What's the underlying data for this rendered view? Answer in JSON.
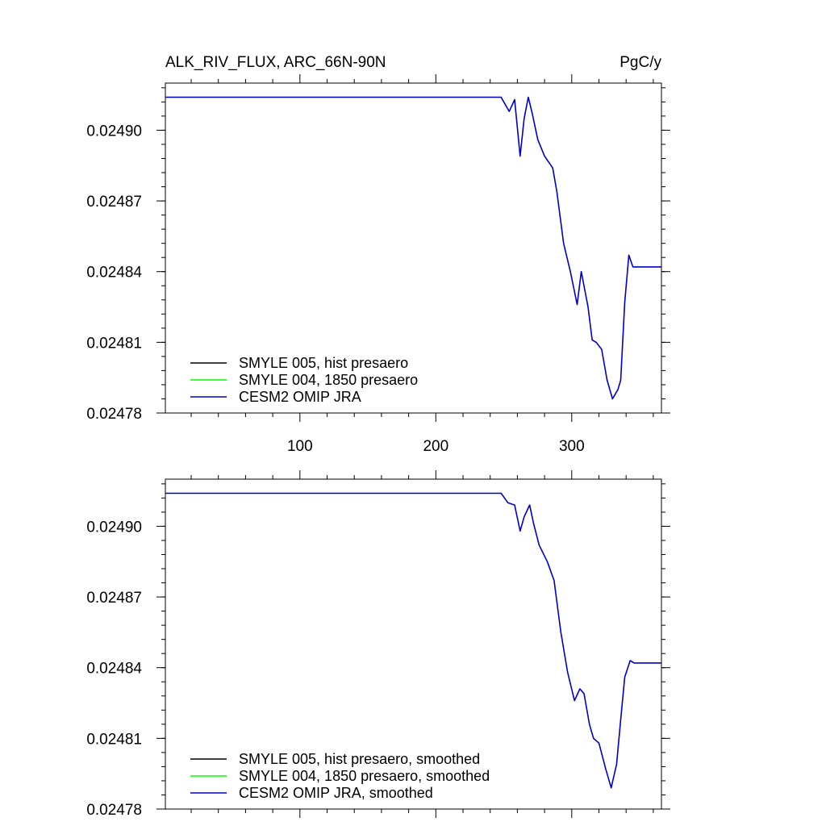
{
  "figure": {
    "title_left": "ALK_RIV_FLUX, ARC_66N-90N",
    "title_right": "PgC/y"
  },
  "chart_data": [
    {
      "type": "line",
      "title": "ALK_RIV_FLUX, ARC_66N-90N",
      "units": "PgC/y",
      "xlim": [
        1,
        366
      ],
      "ylim": [
        0.02478,
        0.02492
      ],
      "x_ticks": [
        100,
        200,
        300
      ],
      "x_tick_labels": [
        "100",
        "200",
        "300"
      ],
      "y_ticks": [
        0.02478,
        0.02481,
        0.02484,
        0.02487,
        0.0249
      ],
      "y_tick_labels": [
        "0.02478",
        "0.02481",
        "0.02484",
        "0.02487",
        "0.02490"
      ],
      "legend_placement": "bottom-left",
      "series": [
        {
          "name": "SMYLE 005, hist presaero",
          "color": "#000000",
          "x": [],
          "y": []
        },
        {
          "name": "SMYLE 004, 1850 presaero",
          "color": "#00ff00",
          "x": [],
          "y": []
        },
        {
          "name": "CESM2 OMIP JRA",
          "color": "#0000cc",
          "x": [
            1,
            100,
            200,
            248,
            251,
            254,
            258,
            262,
            265,
            268,
            271,
            275,
            280,
            286,
            289,
            294,
            299,
            304,
            307,
            312,
            315,
            318,
            322,
            326,
            330,
            334,
            336,
            339,
            342,
            345,
            348,
            366
          ],
          "y": [
            0.024914,
            0.024914,
            0.024914,
            0.024914,
            0.024911,
            0.024908,
            0.024913,
            0.024889,
            0.024905,
            0.024914,
            0.024907,
            0.024896,
            0.024889,
            0.024884,
            0.024874,
            0.024852,
            0.02484,
            0.024826,
            0.02484,
            0.024825,
            0.024811,
            0.02481,
            0.024807,
            0.024794,
            0.024786,
            0.02479,
            0.024794,
            0.024827,
            0.024847,
            0.024842,
            0.024842,
            0.024842
          ]
        }
      ]
    },
    {
      "type": "line",
      "xlim": [
        1,
        366
      ],
      "ylim": [
        0.02478,
        0.02492
      ],
      "x_ticks": [
        100,
        200,
        300
      ],
      "y_ticks": [
        0.02478,
        0.02481,
        0.02484,
        0.02487,
        0.0249
      ],
      "y_tick_labels": [
        "0.02478",
        "0.02481",
        "0.02484",
        "0.02487",
        "0.02490"
      ],
      "legend_placement": "bottom-left",
      "series": [
        {
          "name": "SMYLE 005, hist presaero, smoothed",
          "color": "#000000",
          "x": [],
          "y": []
        },
        {
          "name": "SMYLE 004, 1850 presaero, smoothed",
          "color": "#00ff00",
          "x": [],
          "y": []
        },
        {
          "name": "CESM2 OMIP JRA, smoothed",
          "color": "#0000cc",
          "x": [
            1,
            100,
            200,
            248,
            253,
            258,
            262,
            265,
            269,
            272,
            276,
            282,
            287,
            292,
            297,
            302,
            306,
            309,
            313,
            316,
            320,
            325,
            329,
            333,
            336,
            339,
            343,
            346,
            350,
            366
          ],
          "y": [
            0.024914,
            0.024914,
            0.024914,
            0.024914,
            0.02491,
            0.024909,
            0.024898,
            0.024904,
            0.024909,
            0.024901,
            0.024892,
            0.024885,
            0.024877,
            0.024855,
            0.024838,
            0.024826,
            0.024831,
            0.024829,
            0.024816,
            0.02481,
            0.024808,
            0.024797,
            0.024789,
            0.024799,
            0.024818,
            0.024836,
            0.024843,
            0.024842,
            0.024842,
            0.024842
          ]
        }
      ]
    }
  ]
}
